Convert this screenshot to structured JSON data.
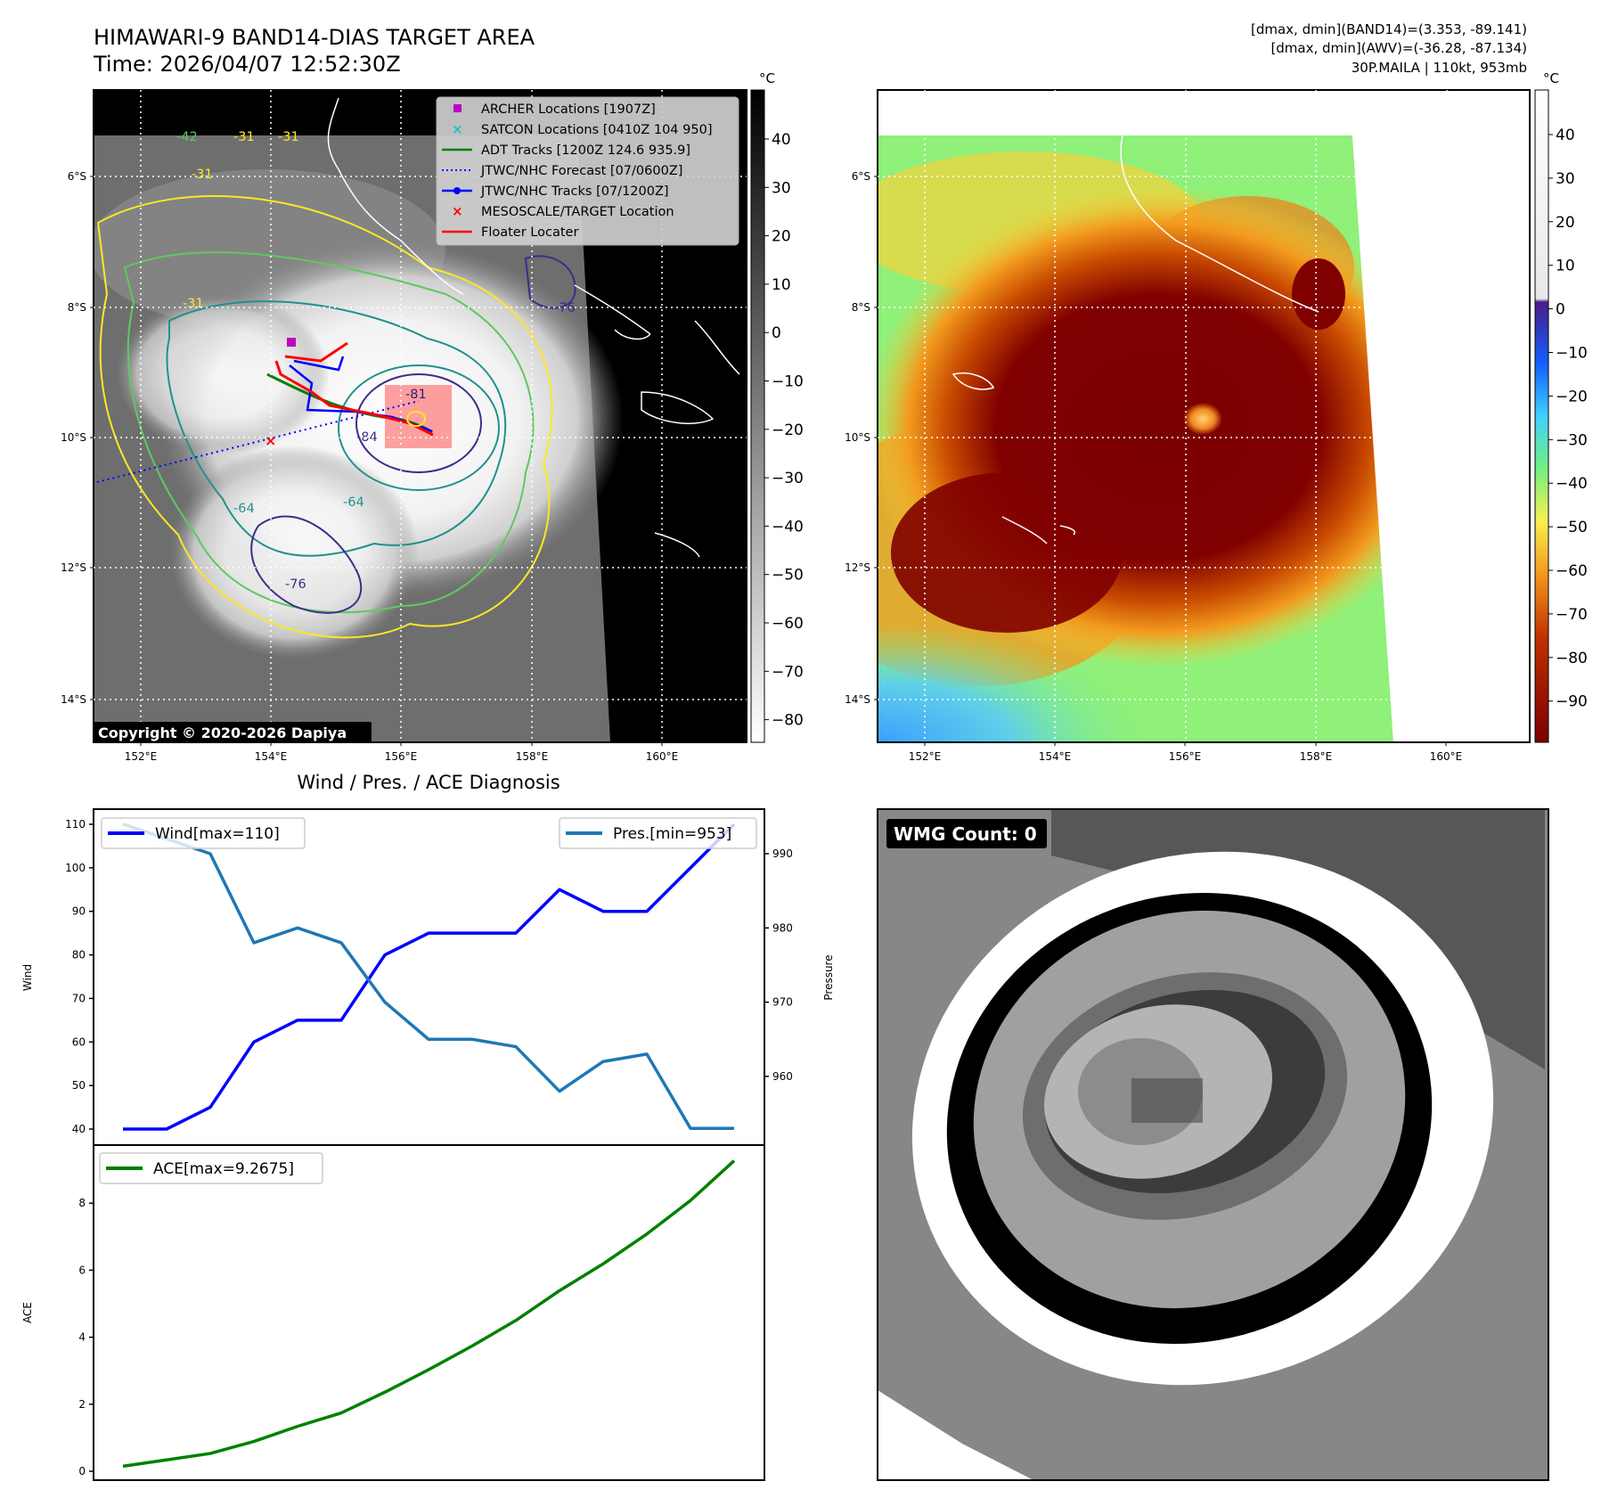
{
  "header": {
    "title": "HIMAWARI-9 BAND14-DIAS TARGET AREA",
    "time": "Time: 2026/04/07 12:52:30Z",
    "info_band14": "[dmax, dmin](BAND14)=(3.353, -89.141)",
    "info_awv": "[dmax, dmin](AWV)=(-36.28, -87.134)",
    "storm": "30P.MAILA | 110kt, 953mb"
  },
  "maps": {
    "lat_labels": [
      "6°S",
      "8°S",
      "10°S",
      "12°S",
      "14°S"
    ],
    "lon_labels": [
      "152°E",
      "154°E",
      "156°E",
      "158°E",
      "160°E"
    ],
    "unit": "°C",
    "colorbar1_ticks": [
      "40",
      "30",
      "20",
      "10",
      "0",
      "−10",
      "−20",
      "−30",
      "−40",
      "−50",
      "−60",
      "−70",
      "−80"
    ],
    "colorbar2_ticks": [
      "40",
      "30",
      "20",
      "10",
      "0",
      "−10",
      "−20",
      "−30",
      "−40",
      "−50",
      "−60",
      "−70",
      "−80",
      "−90"
    ],
    "copyright": "Copyright © 2020-2026 Dapiya",
    "contour_labels": [
      "-42",
      "-31",
      "-31",
      "-31",
      "-31",
      "-76",
      "-81",
      "-84",
      "-64",
      "-64",
      "-76"
    ],
    "legend": [
      {
        "label": "ARCHER Locations [1907Z]",
        "color": "#c000c0",
        "marker": "square"
      },
      {
        "label": "SATCON Locations [0410Z 104 950]",
        "color": "#20c0c0",
        "marker": "x"
      },
      {
        "label": "ADT Tracks [1200Z 124.6 935.9]",
        "color": "#008000",
        "marker": "line"
      },
      {
        "label": "JTWC/NHC Forecast [07/0600Z]",
        "color": "#0000ff",
        "marker": "dotted"
      },
      {
        "label": "JTWC/NHC Tracks [07/1200Z]",
        "color": "#0000ff",
        "marker": "line-dot"
      },
      {
        "label": "MESOSCALE/TARGET Location",
        "color": "#ff0000",
        "marker": "x"
      },
      {
        "label": "Floater Locater",
        "color": "#ff0000",
        "marker": "line"
      }
    ]
  },
  "wmg": {
    "label": "WMG Count: 0"
  },
  "chart_data": [
    {
      "type": "line",
      "title": "Wind / Pres. / ACE Diagnosis",
      "x": [
        0,
        1,
        2,
        3,
        4,
        5,
        6,
        7,
        8,
        9,
        10,
        11,
        12,
        13,
        14
      ],
      "series": [
        {
          "name": "Wind[max=110]",
          "axis": "left",
          "color": "#0000ff",
          "values": [
            40,
            40,
            45,
            60,
            65,
            65,
            80,
            85,
            85,
            85,
            95,
            90,
            90,
            100,
            110
          ]
        },
        {
          "name": "Pres.[min=953]",
          "axis": "right",
          "color": "#1f77b4",
          "values": [
            994,
            992,
            990,
            978,
            980,
            978,
            970,
            965,
            965,
            964,
            958,
            962,
            963,
            953,
            953
          ]
        }
      ],
      "ylabel": "Wind",
      "ylabel_right": "Pressure",
      "ylim": [
        38,
        112
      ],
      "ylim_right": [
        951,
        996
      ],
      "yticks": [
        40,
        50,
        60,
        70,
        80,
        90,
        100,
        110
      ],
      "yticks_right": [
        960,
        970,
        980,
        990
      ],
      "legend": [
        "top-left",
        "top-right"
      ]
    },
    {
      "type": "line",
      "x": [
        0,
        1,
        2,
        3,
        4,
        5,
        6,
        7,
        8,
        9,
        10,
        11,
        12,
        13,
        14
      ],
      "series": [
        {
          "name": "ACE[max=9.2675]",
          "color": "#008000",
          "values": [
            0.15,
            0.34,
            0.53,
            0.89,
            1.34,
            1.74,
            2.36,
            3.03,
            3.74,
            4.5,
            5.39,
            6.19,
            7.08,
            8.08,
            9.2675
          ]
        }
      ],
      "ylabel": "ACE",
      "ylim": [
        -0.26,
        9.75
      ],
      "yticks": [
        0,
        2,
        4,
        6,
        8
      ],
      "legend": "top-left"
    }
  ]
}
